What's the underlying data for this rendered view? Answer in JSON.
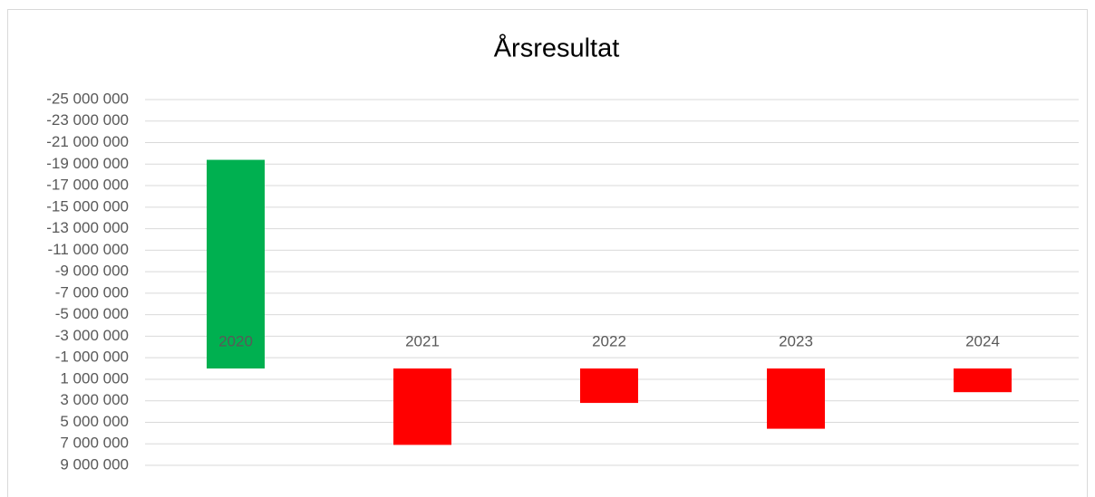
{
  "chart_data": {
    "type": "bar",
    "title": "Årsresultat",
    "categories": [
      "2020",
      "2021",
      "2022",
      "2023",
      "2024"
    ],
    "values": [
      -19400000,
      7100000,
      3200000,
      5600000,
      2200000
    ],
    "colors": [
      "#00b050",
      "#ff0000",
      "#ff0000",
      "#ff0000",
      "#ff0000"
    ],
    "ylim": [
      -25000000,
      9000000
    ],
    "y_inverted": true,
    "yticks": [
      {
        "value": -25000000,
        "label": "-25 000 000"
      },
      {
        "value": -23000000,
        "label": "-23 000 000"
      },
      {
        "value": -21000000,
        "label": "-21 000 000"
      },
      {
        "value": -19000000,
        "label": "-19 000 000"
      },
      {
        "value": -17000000,
        "label": "-17 000 000"
      },
      {
        "value": -15000000,
        "label": "-15 000 000"
      },
      {
        "value": -13000000,
        "label": "-13 000 000"
      },
      {
        "value": -11000000,
        "label": "-11 000 000"
      },
      {
        "value": -9000000,
        "label": "-9 000 000"
      },
      {
        "value": -7000000,
        "label": "-7 000 000"
      },
      {
        "value": -5000000,
        "label": "-5 000 000"
      },
      {
        "value": -3000000,
        "label": "-3 000 000"
      },
      {
        "value": -1000000,
        "label": "-1 000 000"
      },
      {
        "value": 1000000,
        "label": "1 000 000"
      },
      {
        "value": 3000000,
        "label": "3 000 000"
      },
      {
        "value": 5000000,
        "label": "5 000 000"
      },
      {
        "value": 7000000,
        "label": "7 000 000"
      },
      {
        "value": 9000000,
        "label": "9 000 000"
      }
    ],
    "grid": true
  }
}
